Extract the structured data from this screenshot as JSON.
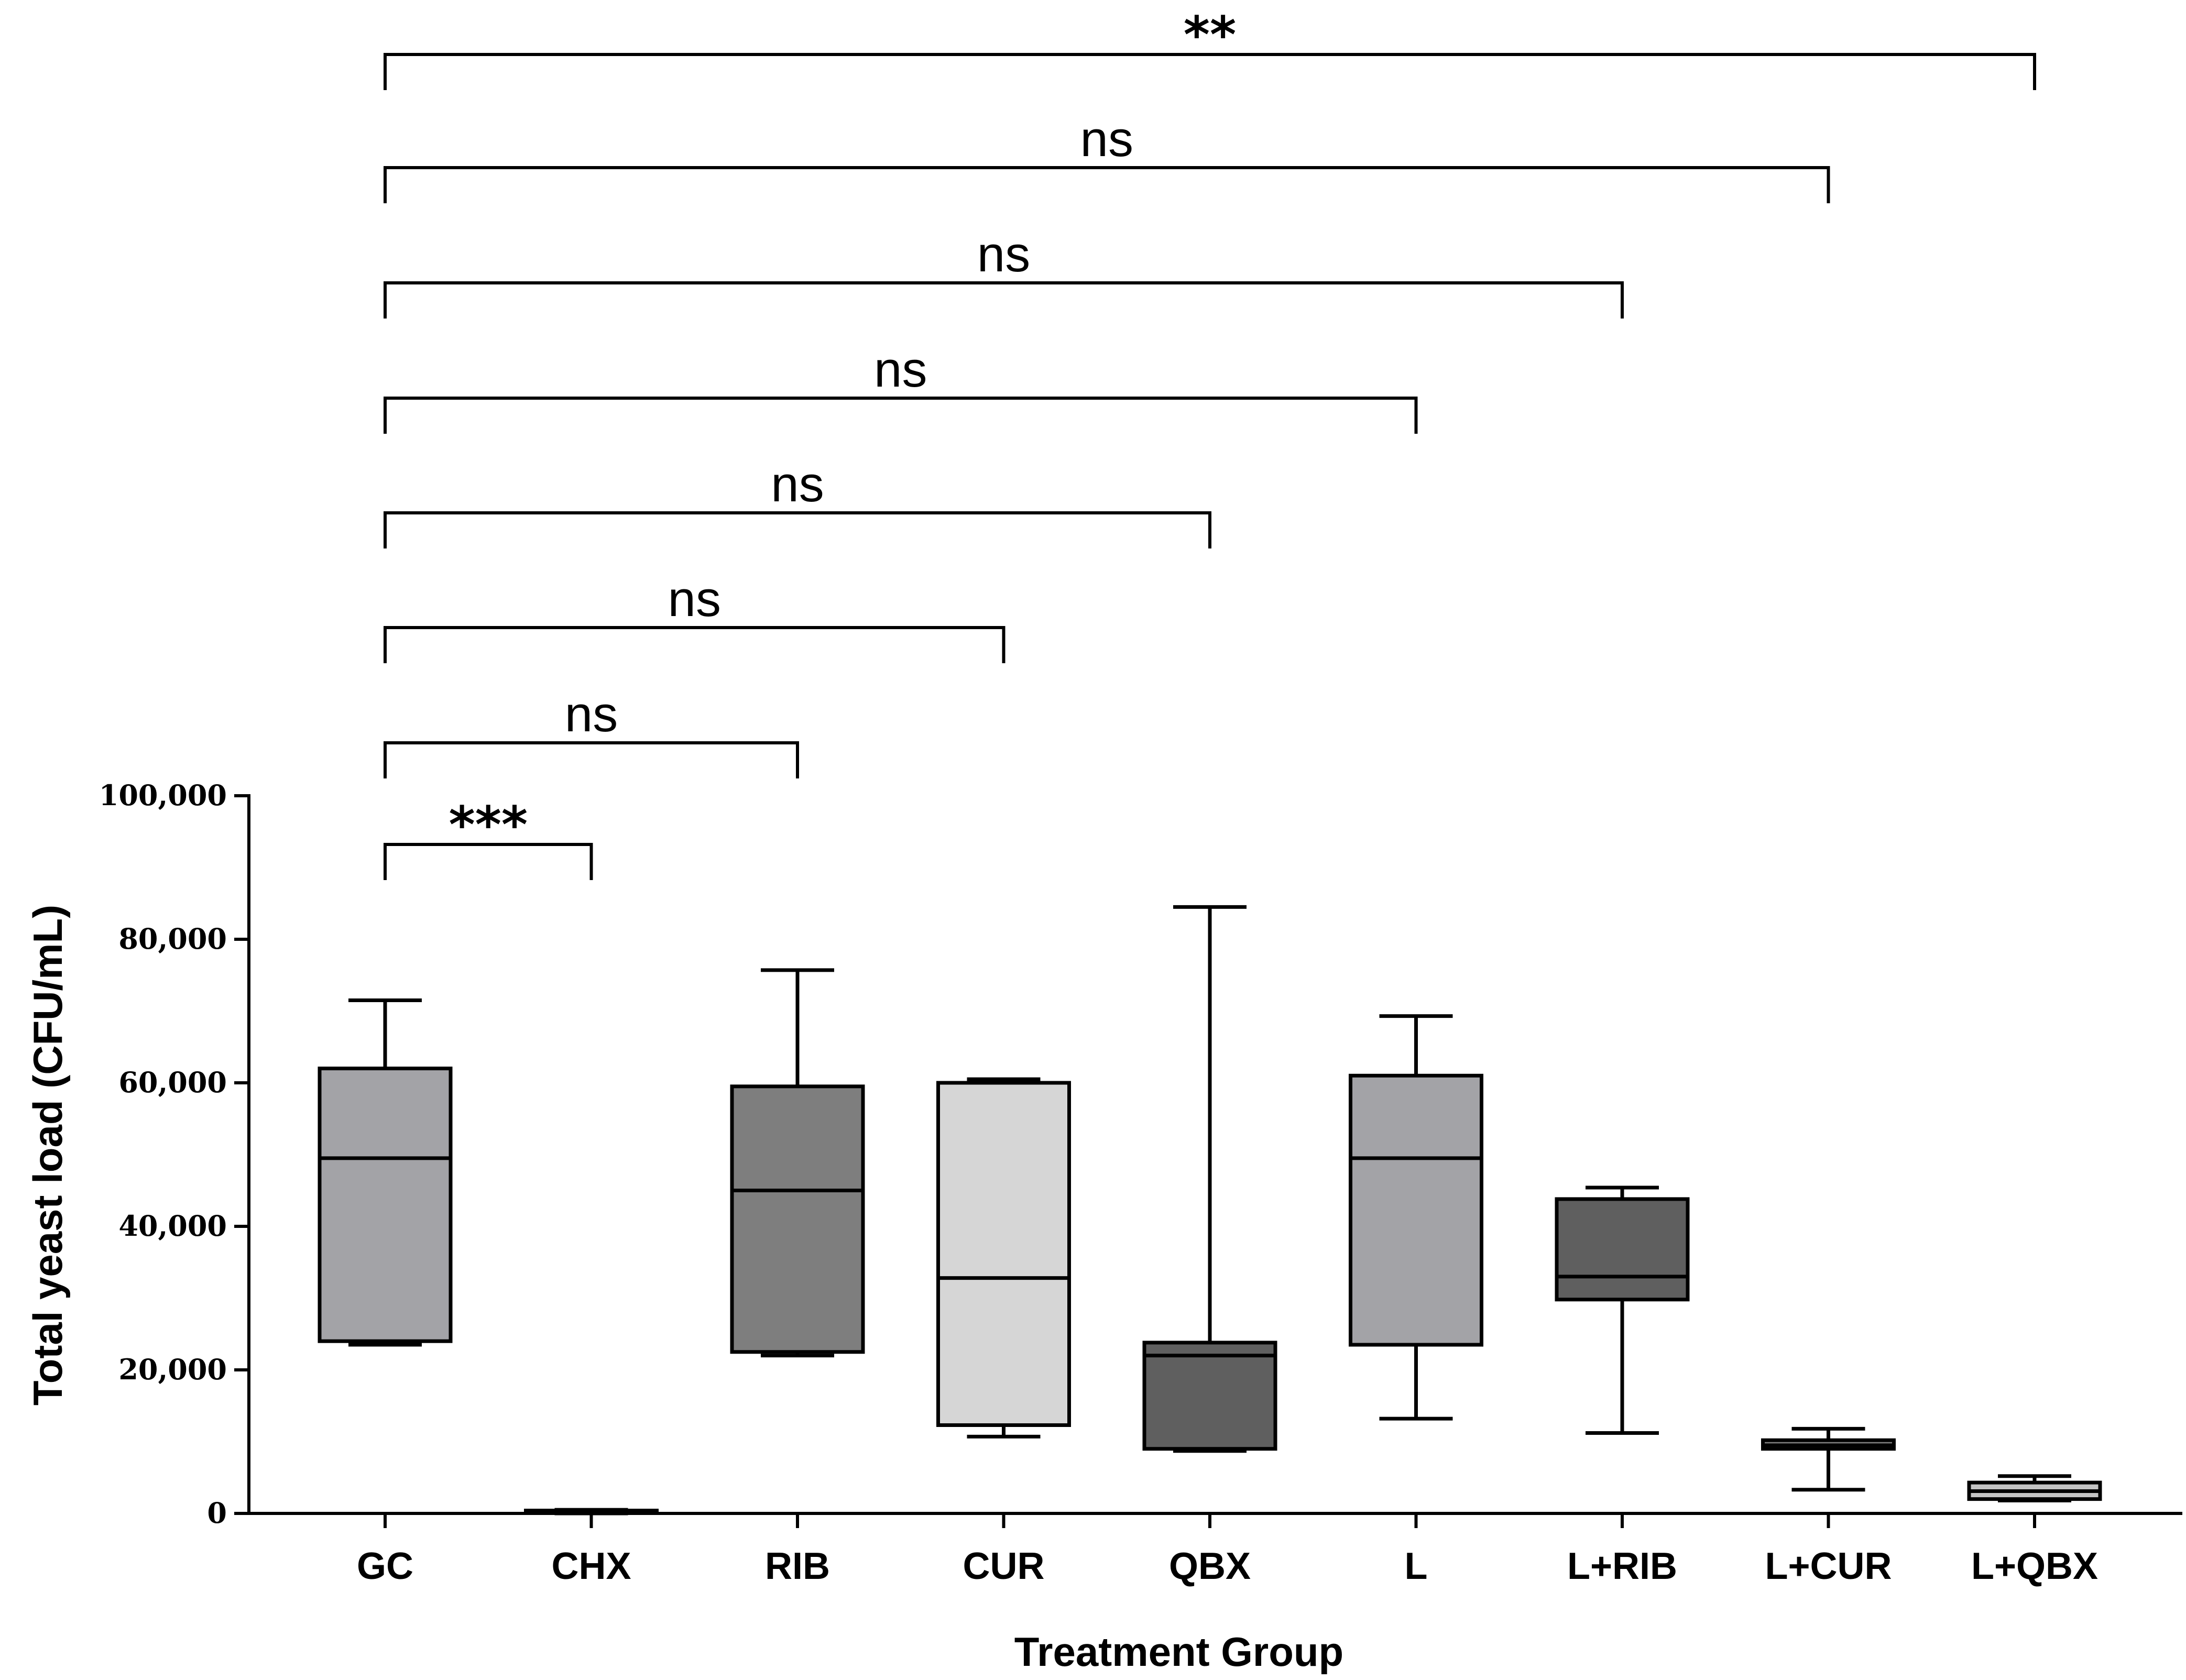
{
  "chart_data": {
    "type": "box",
    "title": "",
    "xlabel": "Treatment Group",
    "ylabel": "Total yeast load (CFU/mL)",
    "ylim": [
      0,
      100000
    ],
    "yticks": [
      0,
      20000,
      40000,
      60000,
      80000,
      100000
    ],
    "ytick_labels": [
      "0",
      "20,000",
      "40,000",
      "60,000",
      "80,000",
      "100,000"
    ],
    "categories": [
      "GC",
      "CHX",
      "RIB",
      "CUR",
      "QBX",
      "L",
      "L+RIB",
      "L+CUR",
      "L+QBX"
    ],
    "boxes": [
      {
        "group": "GC",
        "min": 23500,
        "q1": 24000,
        "median": 49500,
        "q3": 62000,
        "max": 71500,
        "color": "#a3a3a7"
      },
      {
        "group": "CHX",
        "min": 0,
        "q1": 200,
        "median": 300,
        "q3": 400,
        "max": 500,
        "color": "#a3a3a7"
      },
      {
        "group": "RIB",
        "min": 22000,
        "q1": 22500,
        "median": 45000,
        "q3": 59500,
        "max": 75700,
        "color": "#7e7e7e"
      },
      {
        "group": "CUR",
        "min": 10700,
        "q1": 12300,
        "median": 32800,
        "q3": 60000,
        "max": 60500,
        "color": "#d6d6d6"
      },
      {
        "group": "QBX",
        "min": 8700,
        "q1": 9000,
        "median": 22000,
        "q3": 23800,
        "max": 84500,
        "color": "#5f5f5f"
      },
      {
        "group": "L",
        "min": 13200,
        "q1": 23500,
        "median": 49500,
        "q3": 61000,
        "max": 69300,
        "color": "#a3a3a7"
      },
      {
        "group": "L+RIB",
        "min": 11200,
        "q1": 29800,
        "median": 33000,
        "q3": 43800,
        "max": 45400,
        "color": "#5f5f5f"
      },
      {
        "group": "L+CUR",
        "min": 3300,
        "q1": 9000,
        "median": 9500,
        "q3": 10200,
        "max": 11800,
        "color": "#7e7e7e"
      },
      {
        "group": "L+QBX",
        "min": 1800,
        "q1": 2000,
        "median": 3100,
        "q3": 4300,
        "max": 5200,
        "color": "#c4c4c4"
      }
    ],
    "comparisons": [
      {
        "from": "GC",
        "to": "CHX",
        "label": "***"
      },
      {
        "from": "GC",
        "to": "RIB",
        "label": "ns"
      },
      {
        "from": "GC",
        "to": "CUR",
        "label": "ns"
      },
      {
        "from": "GC",
        "to": "QBX",
        "label": "ns"
      },
      {
        "from": "GC",
        "to": "L",
        "label": "ns"
      },
      {
        "from": "GC",
        "to": "L+RIB",
        "label": "ns"
      },
      {
        "from": "GC",
        "to": "L+CUR",
        "label": "ns"
      },
      {
        "from": "GC",
        "to": "L+QBX",
        "label": "**"
      }
    ],
    "grid": false,
    "legend": "none"
  }
}
